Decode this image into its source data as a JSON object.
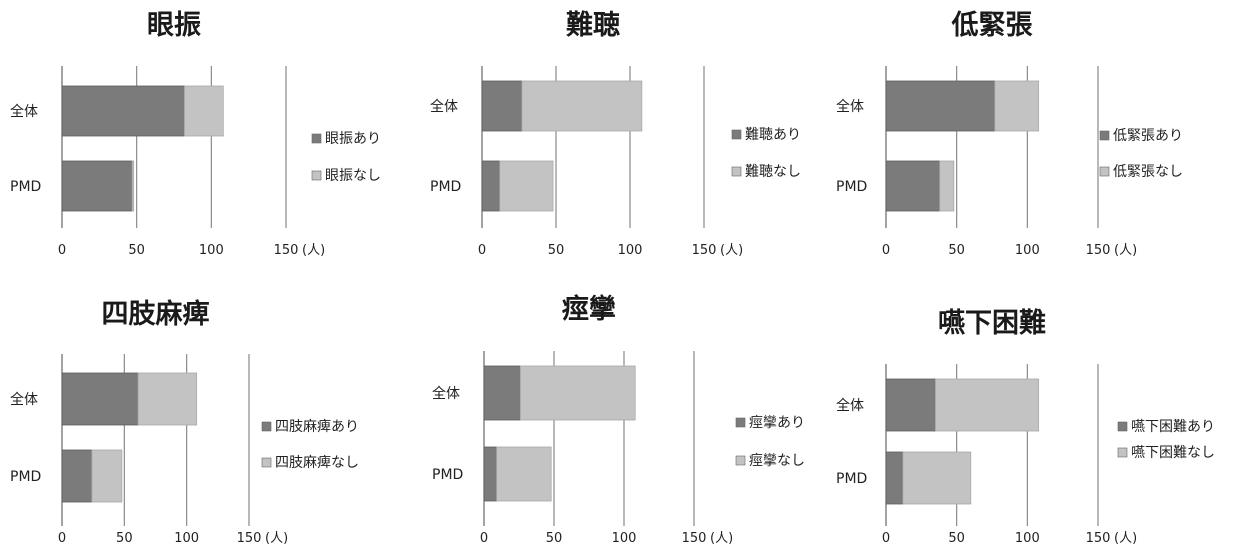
{
  "chart_data": [
    {
      "type": "bar",
      "orientation": "horizontal",
      "stacked": true,
      "title": "眼振",
      "categories": [
        "全体",
        "PMD"
      ],
      "series": [
        {
          "name": "眼振あり",
          "values": [
            82,
            47
          ]
        },
        {
          "name": "眼振なし",
          "values": [
            26,
            1
          ]
        }
      ],
      "xlim": [
        0,
        150
      ],
      "xticks": [
        "0",
        "50",
        "100",
        "150"
      ],
      "unit": "(人)",
      "grid": true,
      "legend": "right"
    },
    {
      "type": "bar",
      "orientation": "horizontal",
      "stacked": true,
      "title": "難聴",
      "categories": [
        "全体",
        "PMD"
      ],
      "series": [
        {
          "name": "難聴あり",
          "values": [
            27,
            12
          ]
        },
        {
          "name": "難聴なし",
          "values": [
            81,
            36
          ]
        }
      ],
      "xlim": [
        0,
        150
      ],
      "xticks": [
        "0",
        "50",
        "100",
        "150"
      ],
      "unit": "(人)",
      "grid": true,
      "legend": "right"
    },
    {
      "type": "bar",
      "orientation": "horizontal",
      "stacked": true,
      "title": "低緊張",
      "categories": [
        "全体",
        "PMD"
      ],
      "series": [
        {
          "name": "低緊張あり",
          "values": [
            77,
            38
          ]
        },
        {
          "name": "低緊張なし",
          "values": [
            31,
            10
          ]
        }
      ],
      "xlim": [
        0,
        150
      ],
      "xticks": [
        "0",
        "50",
        "100",
        "150"
      ],
      "unit": "(人)",
      "grid": true,
      "legend": "right"
    },
    {
      "type": "bar",
      "orientation": "horizontal",
      "stacked": true,
      "title": "四肢麻痺",
      "categories": [
        "全体",
        "PMD"
      ],
      "series": [
        {
          "name": "四肢麻痺あり",
          "values": [
            61,
            24
          ]
        },
        {
          "name": "四肢麻痺なし",
          "values": [
            47,
            24
          ]
        }
      ],
      "xlim": [
        0,
        150
      ],
      "xticks": [
        "0",
        "50",
        "100",
        "150"
      ],
      "unit": "(人)",
      "grid": true,
      "legend": "right"
    },
    {
      "type": "bar",
      "orientation": "horizontal",
      "stacked": true,
      "title": "痙攣",
      "categories": [
        "全体",
        "PMD"
      ],
      "series": [
        {
          "name": "痙攣あり",
          "values": [
            26,
            9
          ]
        },
        {
          "name": "痙攣なし",
          "values": [
            82,
            39
          ]
        }
      ],
      "xlim": [
        0,
        150
      ],
      "xticks": [
        "0",
        "50",
        "100",
        "150"
      ],
      "unit": "(人)",
      "grid": true,
      "legend": "right"
    },
    {
      "type": "bar",
      "orientation": "horizontal",
      "stacked": true,
      "title": "嚥下困難",
      "categories": [
        "全体",
        "PMD"
      ],
      "series": [
        {
          "name": "嚥下困難あり",
          "values": [
            35,
            12
          ]
        },
        {
          "name": "嚥下困難なし",
          "values": [
            73,
            48
          ]
        }
      ],
      "xlim": [
        0,
        150
      ],
      "xticks": [
        "0",
        "50",
        "100",
        "150"
      ],
      "unit": "(人)",
      "grid": true,
      "legend": "right"
    }
  ],
  "colors": {
    "present": "#7b7b7b",
    "absent": "#c3c3c3"
  }
}
